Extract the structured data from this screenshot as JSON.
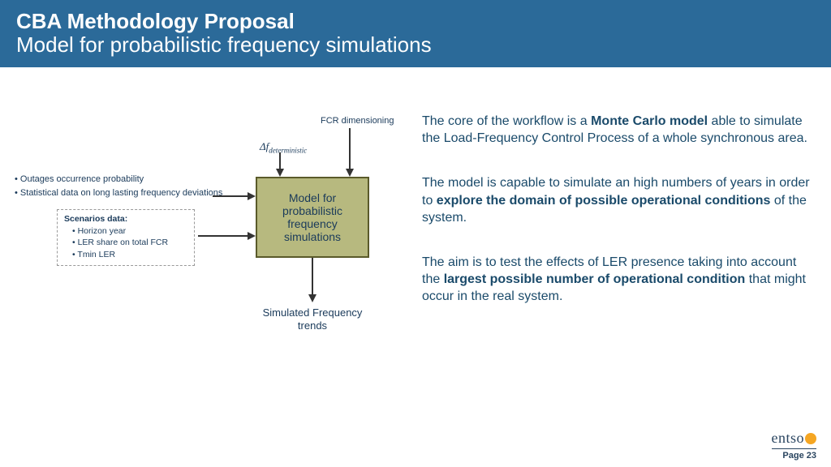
{
  "header": {
    "title": "CBA Methodology Proposal",
    "subtitle": "Model for probabilistic frequency simulations",
    "bg_color": "#2b6a99",
    "text_color": "#ffffff"
  },
  "diagram": {
    "fcr_label": "FCR dimensioning",
    "delta_label_prefix": "Δf",
    "delta_label_sub": "deterministic",
    "left_bullets": [
      "Outages occurrence probability",
      "Statistical data on long lasting frequency deviations"
    ],
    "scenarios": {
      "title": "Scenarios data:",
      "items": [
        "Horizon year",
        "LER share on total FCR",
        "Tmin LER"
      ]
    },
    "model_box": {
      "text": "Model for probabilistic frequency simulations",
      "fill": "#b7b97f",
      "border": "#5a5a2a"
    },
    "output_label": "Simulated Frequency trends",
    "arrow_color": "#333333"
  },
  "paragraphs": {
    "p1_a": "The core of the workflow is a ",
    "p1_b": "Monte Carlo model",
    "p1_c": " able to simulate the Load-Frequency Control Process of a whole synchronous area.",
    "p2_a": "The model is capable to simulate an high numbers of years in order to ",
    "p2_b": "explore the domain of possible operational conditions",
    "p2_c": " of the system.",
    "p3_a": "The aim is to test the effects of LER presence taking into account the ",
    "p3_b": "largest possible number of operational  condition",
    "p3_c": " that might occur in the real system."
  },
  "footer": {
    "logo_text": "entso",
    "page_label": "Page 23"
  },
  "colors": {
    "body_text": "#1a4a6a",
    "diagram_text": "#1a3a5a"
  }
}
